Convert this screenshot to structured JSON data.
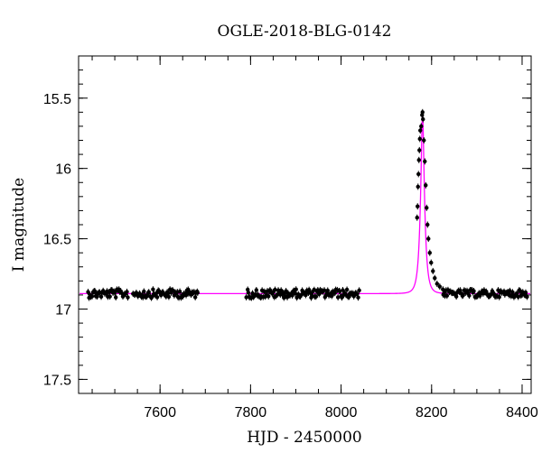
{
  "chart_data": {
    "type": "scatter",
    "title": "OGLE-2018-BLG-0142",
    "xlabel": "HJD - 2450000",
    "ylabel": "I magnitude",
    "xlim": [
      7420,
      8420
    ],
    "ylim": [
      15.2,
      17.6
    ],
    "y_inverted": true,
    "grid": false,
    "x_ticks": [
      7600,
      7800,
      8000,
      8200,
      8400
    ],
    "x_tick_labels": [
      "7600",
      "7800",
      "8000",
      "8200",
      "8400"
    ],
    "y_ticks": [
      15.5,
      16,
      16.5,
      17,
      17.5
    ],
    "y_tick_labels": [
      "15.5",
      "16",
      "16.5",
      "17",
      "17.5"
    ],
    "model_color": "#ff00ff",
    "point_color": "#000000",
    "model": {
      "t0": 8180,
      "baseline_mag": 16.89,
      "peak_mag": 15.62,
      "tE": 8.8
    },
    "observations": {
      "season_ranges": [
        [
          7440,
          7530
        ],
        [
          7540,
          7685
        ],
        [
          7790,
          8040
        ]
      ],
      "season_mag": 16.89,
      "peak_points": [
        {
          "x": 8168,
          "y": 16.35
        },
        {
          "x": 8169,
          "y": 16.27
        },
        {
          "x": 8170,
          "y": 16.13
        },
        {
          "x": 8171,
          "y": 16.04
        },
        {
          "x": 8172,
          "y": 15.94
        },
        {
          "x": 8173,
          "y": 15.87
        },
        {
          "x": 8174,
          "y": 15.79
        },
        {
          "x": 8175,
          "y": 15.73
        },
        {
          "x": 8177,
          "y": 15.7
        },
        {
          "x": 8179,
          "y": 15.62
        },
        {
          "x": 8180,
          "y": 15.6
        },
        {
          "x": 8181,
          "y": 15.65
        },
        {
          "x": 8183,
          "y": 15.8
        },
        {
          "x": 8185,
          "y": 15.95
        },
        {
          "x": 8187,
          "y": 16.12
        },
        {
          "x": 8189,
          "y": 16.28
        },
        {
          "x": 8191,
          "y": 16.4
        },
        {
          "x": 8193,
          "y": 16.5
        },
        {
          "x": 8196,
          "y": 16.6
        },
        {
          "x": 8199,
          "y": 16.67
        },
        {
          "x": 8203,
          "y": 16.73
        },
        {
          "x": 8207,
          "y": 16.78
        },
        {
          "x": 8212,
          "y": 16.82
        },
        {
          "x": 8218,
          "y": 16.84
        },
        {
          "x": 8225,
          "y": 16.86
        }
      ],
      "tail_range": [
        8225,
        8410
      ]
    }
  }
}
